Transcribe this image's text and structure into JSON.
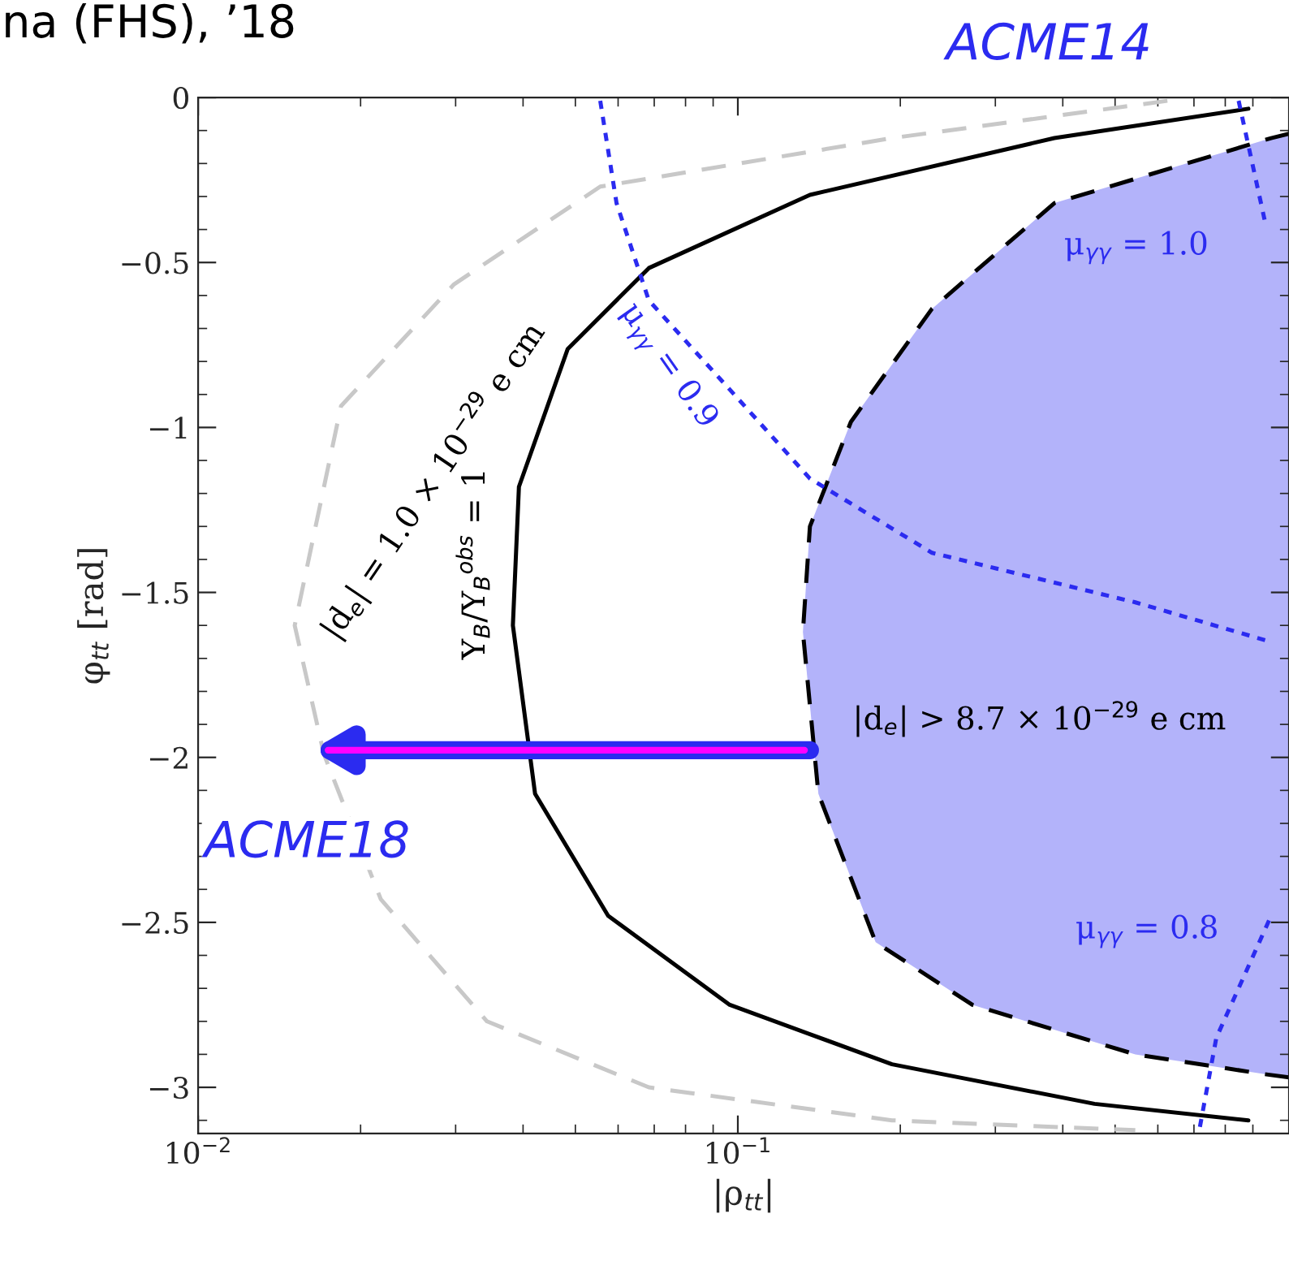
{
  "chart_data": {
    "type": "line",
    "xlabel": "|ρ$_{tt}$|",
    "ylabel": "φ$_{tt}$ [rad]",
    "log": "x",
    "xlim": [
      0.01,
      1.05
    ],
    "xticks": [
      {
        "value": 0.01,
        "label": "10$^{−2}$"
      },
      {
        "value": 0.1,
        "label": "10$^{−1}$"
      }
    ],
    "ylim": [
      -3.14,
      0
    ],
    "yticks": [
      {
        "value": 0,
        "label": "0"
      },
      {
        "value": -0.5,
        "label": "−0.5"
      },
      {
        "value": -1,
        "label": "−1"
      },
      {
        "value": -1.5,
        "label": "−1.5"
      },
      {
        "value": -2,
        "label": "−2"
      },
      {
        "value": -2.5,
        "label": "−2.5"
      },
      {
        "value": -3,
        "label": "−3"
      }
    ],
    "grid": false,
    "series": [
      {
        "color": "#000000",
        "line_style": "dashed",
        "x": [
          1.05,
          0.973,
          0.386,
          0.229,
          0.162,
          0.136,
          0.132,
          0.141,
          0.18,
          0.272,
          0.545,
          0.946,
          1.05
        ],
        "values": [
          -0.11,
          -0.123,
          -0.32,
          -0.64,
          -0.983,
          -1.3,
          -1.62,
          -2.11,
          -2.56,
          -2.75,
          -2.9,
          -2.96,
          -2.97
        ]
      },
      {
        "color": "#c8c8c8",
        "line_style": "dashed",
        "x": [
          0.625,
          0.193,
          0.0556,
          0.0298,
          0.0184,
          0.0151,
          0.0171,
          0.0218,
          0.0343,
          0.0684,
          0.193,
          0.545
        ],
        "values": [
          -0.01,
          -0.123,
          -0.27,
          -0.566,
          -0.935,
          -1.6,
          -1.99,
          -2.43,
          -2.8,
          -3.0,
          -3.1,
          -3.13
        ]
      },
      {
        "color": "#000000",
        "line_style": "solid",
        "x": [
          0.883,
          0.386,
          0.136,
          0.0684,
          0.0484,
          0.0393,
          0.0383,
          0.0421,
          0.0575,
          0.0966,
          0.193,
          0.458,
          0.883
        ],
        "values": [
          -0.034,
          -0.123,
          -0.295,
          -0.517,
          -0.762,
          -1.18,
          -1.6,
          -2.11,
          -2.48,
          -2.75,
          -2.93,
          -3.05,
          -3.1
        ]
      },
      {
        "color": "#2b2bf0",
        "line_style": "dotted",
        "x": [
          0.0556,
          0.0596,
          0.0684,
          0.0966,
          0.136,
          0.229,
          0.545,
          0.973
        ],
        "values": [
          -0.01,
          -0.32,
          -0.615,
          -0.885,
          -1.155,
          -1.38,
          -1.53,
          -1.65
        ]
      },
      {
        "color": "#2b2bf0",
        "line_style": "dotted",
        "x": [
          0.847,
          0.946
        ],
        "values": [
          -0.01,
          -0.37
        ]
      },
      {
        "color": "#2b2bf0",
        "line_style": "dotted",
        "x": [
          0.718,
          0.77,
          0.973
        ],
        "values": [
          -3.12,
          -2.85,
          -2.48
        ]
      }
    ],
    "annotations": [
      "|d$_{e}$| = 1.0 × 10$^{−29}$ e cm",
      "Y$_{B}$/Y$_{B}$$^{obs}$ = 1",
      "μ$_{γγ}$ = 0.9",
      "μ$_{γγ}$ = 1.0",
      "|d$_{e}$| > 8.7 × 10$^{−29}$ e cm",
      "μ$_{γγ}$ = 0.8",
      "ACME14",
      "ACME18",
      "na (FHS), ’18"
    ]
  }
}
